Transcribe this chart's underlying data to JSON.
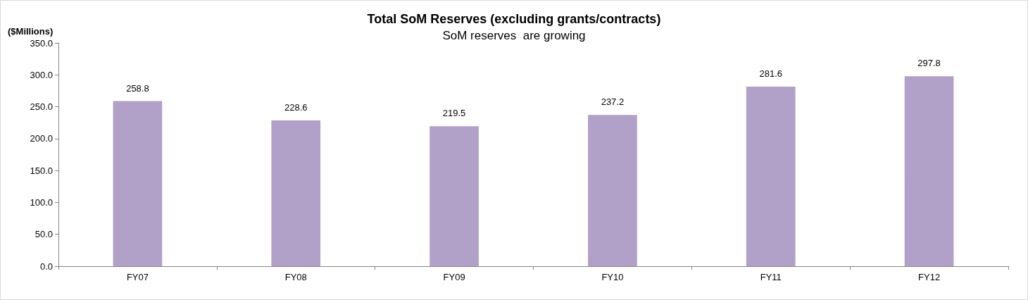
{
  "chart_data": {
    "type": "bar",
    "title": "Total SoM Reserves (excluding grants/contracts)",
    "subtitle": "SoM reserves  are growing",
    "ylabel": "($Millions)",
    "categories": [
      "FY07",
      "FY08",
      "FY09",
      "FY10",
      "FY11",
      "FY12"
    ],
    "values": [
      258.8,
      228.6,
      219.5,
      237.2,
      281.6,
      297.8
    ],
    "color": "#b1a0c7",
    "ylim": [
      0,
      350
    ],
    "yticks": [
      {
        "value": 0,
        "label": "0.0"
      },
      {
        "value": 50,
        "label": "50.0"
      },
      {
        "value": 100,
        "label": "100.0"
      },
      {
        "value": 150,
        "label": "150.0"
      },
      {
        "value": 200,
        "label": "200.0"
      },
      {
        "value": 250,
        "label": "250.0"
      },
      {
        "value": 300,
        "label": "300.0"
      },
      {
        "value": 350,
        "label": "350.0"
      }
    ],
    "data_labels": true,
    "grid": false
  }
}
